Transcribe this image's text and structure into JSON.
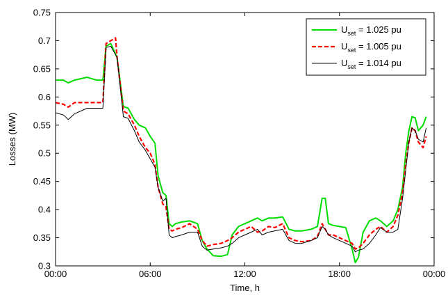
{
  "chart_data": {
    "type": "line",
    "title": "",
    "xlabel": "Time, h",
    "ylabel": "Losses (MW)",
    "xlim": [
      0,
      24
    ],
    "ylim": [
      0.3,
      0.75
    ],
    "x_ticks": [
      0,
      6,
      12,
      18,
      24
    ],
    "x_tick_labels": [
      "00:00",
      "06:00",
      "12:00",
      "18:00",
      "00:00"
    ],
    "y_ticks": [
      0.3,
      0.35,
      0.4,
      0.45,
      0.5,
      0.55,
      0.6,
      0.65,
      0.7,
      0.75
    ],
    "y_tick_labels": [
      "0.3",
      "0.35",
      "0.4",
      "0.45",
      "0.5",
      "0.55",
      "0.6",
      "0.65",
      "0.7",
      "0.75"
    ],
    "grid": false,
    "legend_position": "top-right",
    "series": [
      {
        "name_main": "U",
        "name_sub": "set",
        "name_rest": " = 1.025 pu",
        "color": "#00dd00",
        "style": "solid",
        "x": [
          0,
          0.5,
          0.8,
          1.2,
          2.0,
          2.6,
          3.0,
          3.2,
          3.5,
          3.9,
          4.3,
          4.6,
          5.0,
          5.3,
          5.7,
          6.0,
          6.3,
          6.5,
          6.8,
          7.0,
          7.2,
          7.4,
          7.6,
          8.0,
          8.5,
          9.0,
          9.3,
          9.6,
          10.0,
          10.5,
          10.9,
          11.2,
          11.6,
          12.0,
          12.4,
          12.8,
          13.1,
          13.5,
          13.9,
          14.4,
          14.8,
          15.2,
          15.6,
          16.2,
          16.6,
          16.9,
          17.1,
          17.3,
          17.6,
          18.0,
          18.4,
          18.8,
          19.0,
          19.2,
          19.5,
          19.9,
          20.3,
          20.6,
          21.0,
          21.4,
          21.7,
          22.0,
          22.2,
          22.4,
          22.6,
          22.8,
          23.0,
          23.3,
          23.5
        ],
        "y": [
          0.63,
          0.63,
          0.625,
          0.63,
          0.635,
          0.63,
          0.63,
          0.69,
          0.695,
          0.67,
          0.583,
          0.58,
          0.56,
          0.55,
          0.545,
          0.53,
          0.518,
          0.46,
          0.43,
          0.425,
          0.375,
          0.37,
          0.375,
          0.378,
          0.38,
          0.375,
          0.345,
          0.33,
          0.318,
          0.317,
          0.32,
          0.355,
          0.37,
          0.375,
          0.38,
          0.385,
          0.38,
          0.385,
          0.385,
          0.387,
          0.365,
          0.362,
          0.362,
          0.365,
          0.37,
          0.42,
          0.42,
          0.375,
          0.372,
          0.37,
          0.368,
          0.33,
          0.306,
          0.315,
          0.36,
          0.38,
          0.385,
          0.38,
          0.37,
          0.38,
          0.4,
          0.44,
          0.5,
          0.54,
          0.565,
          0.563,
          0.54,
          0.55,
          0.565
        ]
      },
      {
        "name_main": "U",
        "name_sub": "set",
        "name_rest": " = 1.005 pu",
        "color": "#ff0000",
        "style": "dashed",
        "x": [
          0,
          0.5,
          0.8,
          1.2,
          2.0,
          2.6,
          3.0,
          3.2,
          3.5,
          3.8,
          3.9,
          4.3,
          4.6,
          5.0,
          5.3,
          5.7,
          6.0,
          6.3,
          6.5,
          6.8,
          7.0,
          7.2,
          7.4,
          7.6,
          8.0,
          8.5,
          9.0,
          9.3,
          9.6,
          10.0,
          10.5,
          10.9,
          11.2,
          11.6,
          12.0,
          12.4,
          12.8,
          13.1,
          13.5,
          13.9,
          14.4,
          14.8,
          15.2,
          15.6,
          16.2,
          16.6,
          16.9,
          17.1,
          17.3,
          17.6,
          18.0,
          18.4,
          18.8,
          19.0,
          19.2,
          19.5,
          19.9,
          20.3,
          20.6,
          21.0,
          21.4,
          21.7,
          22.0,
          22.2,
          22.4,
          22.6,
          22.8,
          23.0,
          23.3,
          23.5
        ],
        "y": [
          0.59,
          0.587,
          0.582,
          0.59,
          0.59,
          0.59,
          0.59,
          0.695,
          0.7,
          0.705,
          0.67,
          0.575,
          0.57,
          0.55,
          0.53,
          0.51,
          0.5,
          0.48,
          0.44,
          0.41,
          0.405,
          0.365,
          0.362,
          0.365,
          0.368,
          0.375,
          0.365,
          0.345,
          0.335,
          0.338,
          0.34,
          0.345,
          0.35,
          0.36,
          0.365,
          0.37,
          0.36,
          0.362,
          0.37,
          0.368,
          0.375,
          0.35,
          0.345,
          0.343,
          0.345,
          0.352,
          0.375,
          0.365,
          0.355,
          0.355,
          0.35,
          0.345,
          0.34,
          0.33,
          0.332,
          0.34,
          0.355,
          0.365,
          0.37,
          0.36,
          0.37,
          0.39,
          0.43,
          0.48,
          0.52,
          0.545,
          0.54,
          0.52,
          0.51,
          0.53
        ]
      },
      {
        "name_main": "U",
        "name_sub": "set",
        "name_rest": " = 1.014 pu",
        "color": "#000000",
        "style": "solid",
        "x": [
          0,
          0.5,
          0.8,
          1.2,
          2.0,
          2.6,
          3.0,
          3.2,
          3.5,
          3.9,
          4.3,
          4.6,
          5.0,
          5.3,
          5.7,
          6.0,
          6.3,
          6.5,
          6.8,
          7.0,
          7.2,
          7.4,
          7.6,
          8.0,
          8.5,
          9.0,
          9.3,
          9.6,
          10.0,
          10.5,
          10.9,
          11.2,
          11.6,
          12.0,
          12.4,
          12.8,
          13.1,
          13.5,
          13.9,
          14.4,
          14.8,
          15.2,
          15.6,
          16.2,
          16.6,
          16.9,
          17.1,
          17.3,
          17.6,
          18.0,
          18.4,
          18.8,
          19.0,
          19.2,
          19.5,
          19.9,
          20.3,
          20.6,
          21.0,
          21.4,
          21.7,
          22.0,
          22.2,
          22.4,
          22.6,
          22.8,
          23.0,
          23.3,
          23.5
        ],
        "y": [
          0.572,
          0.568,
          0.56,
          0.57,
          0.58,
          0.58,
          0.58,
          0.688,
          0.69,
          0.67,
          0.565,
          0.562,
          0.54,
          0.52,
          0.505,
          0.49,
          0.475,
          0.44,
          0.415,
          0.42,
          0.355,
          0.35,
          0.352,
          0.355,
          0.36,
          0.36,
          0.335,
          0.328,
          0.33,
          0.332,
          0.335,
          0.34,
          0.35,
          0.355,
          0.36,
          0.365,
          0.355,
          0.36,
          0.362,
          0.365,
          0.345,
          0.34,
          0.34,
          0.345,
          0.35,
          0.37,
          0.365,
          0.355,
          0.35,
          0.345,
          0.34,
          0.335,
          0.325,
          0.328,
          0.33,
          0.34,
          0.355,
          0.368,
          0.36,
          0.36,
          0.365,
          0.42,
          0.47,
          0.52,
          0.545,
          0.54,
          0.525,
          0.52,
          0.545
        ]
      }
    ]
  }
}
